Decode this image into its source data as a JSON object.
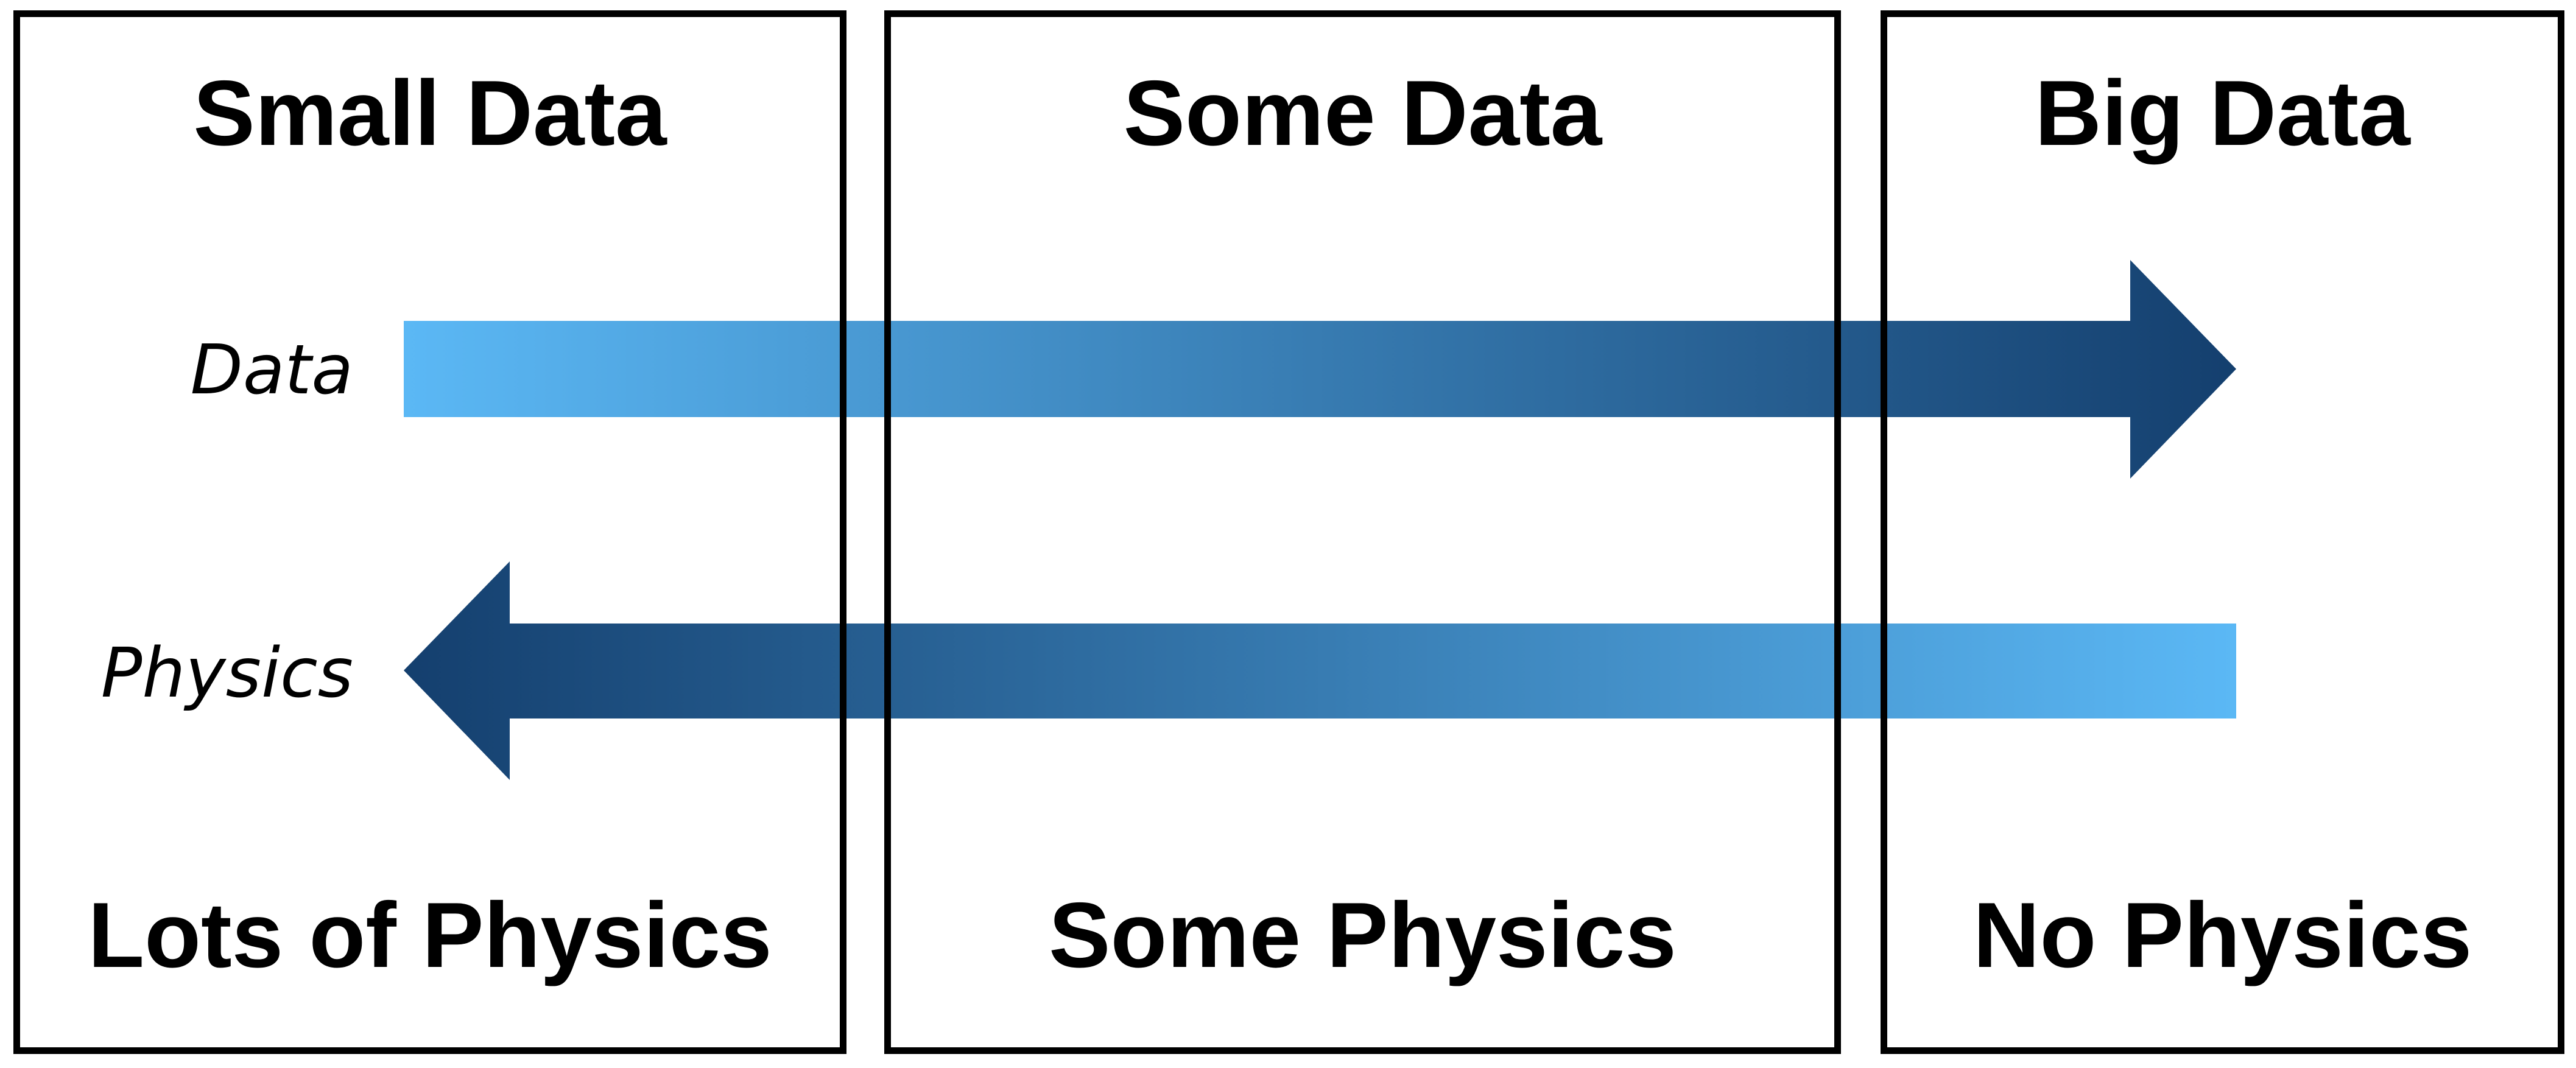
{
  "columns": [
    {
      "top_label": "Small Data",
      "bottom_label": "Lots of Physics"
    },
    {
      "top_label": "Some Data",
      "bottom_label": "Some Physics"
    },
    {
      "top_label": "Big Data",
      "bottom_label": "No Physics"
    }
  ],
  "arrows": {
    "data": {
      "label": "Data",
      "direction": "right"
    },
    "physics": {
      "label": "Physics",
      "direction": "left"
    }
  },
  "colors": {
    "arrow_light": "#5BB8F5",
    "arrow_dark": "#143F6E",
    "border": "#000000"
  }
}
